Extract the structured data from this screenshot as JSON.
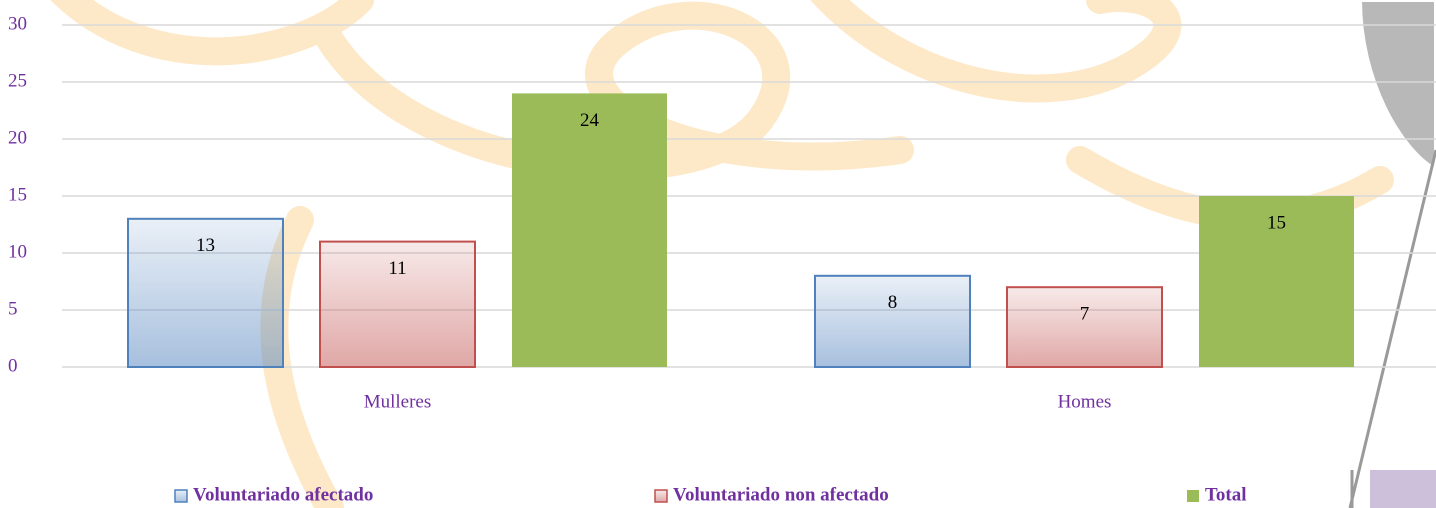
{
  "chart_data": {
    "type": "bar",
    "categories": [
      "Mulleres",
      "Homes"
    ],
    "series": [
      {
        "name": "Voluntariado afectado",
        "color": "#4f81bd",
        "fill_style": "gradient",
        "values": [
          13,
          8
        ]
      },
      {
        "name": "Voluntariado non afectado",
        "color": "#c0504d",
        "fill_style": "gradient",
        "values": [
          11,
          7
        ]
      },
      {
        "name": "Total",
        "color": "#9bbb59",
        "fill_style": "solid",
        "values": [
          24,
          15
        ]
      }
    ],
    "ylim": [
      0,
      30
    ],
    "yticks": [
      0,
      5,
      10,
      15,
      20,
      25,
      30
    ],
    "grid": true,
    "data_labels": true,
    "legend": "bottom"
  }
}
